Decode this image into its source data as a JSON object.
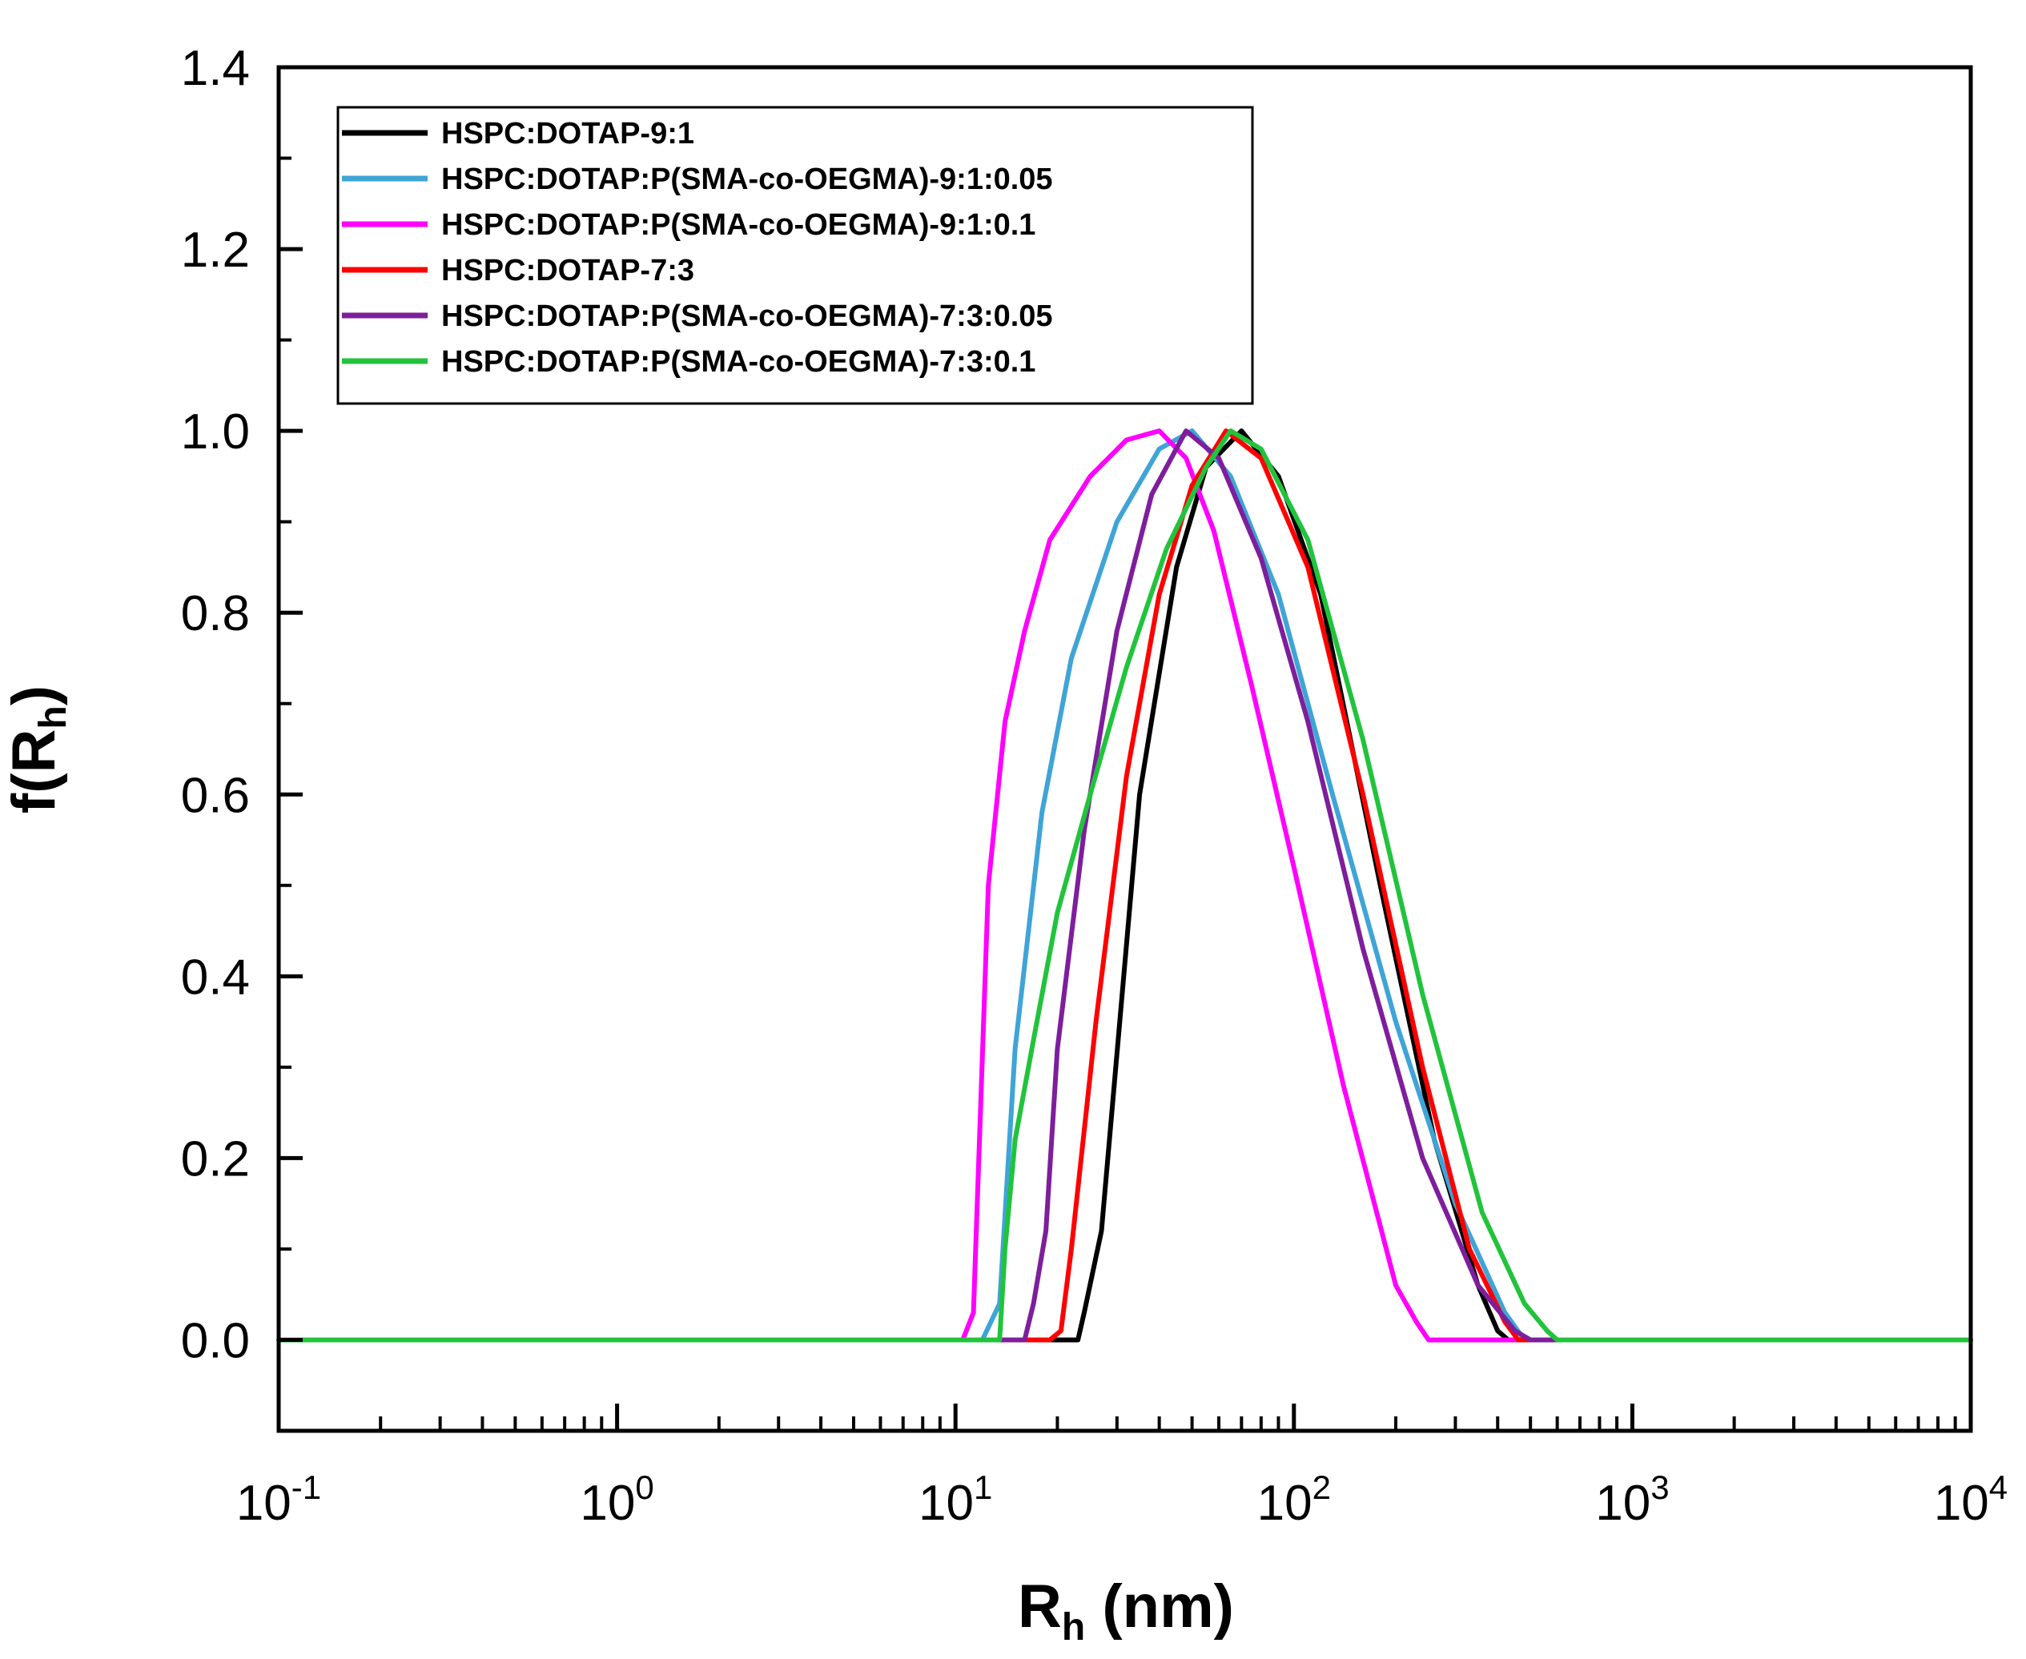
{
  "chart_data": {
    "type": "line",
    "title": "",
    "xlabel": {
      "main": "R",
      "sub": "h",
      "suffix": " (nm)"
    },
    "ylabel": {
      "prefix": "f(R",
      "sub": "h",
      "suffix": ")"
    },
    "xscale": "log",
    "xlim": [
      0.1,
      10000
    ],
    "ylim": [
      -0.1,
      1.4
    ],
    "x_ticks": [
      {
        "base": "10",
        "exp": "-1",
        "value": 0.1
      },
      {
        "base": "10",
        "exp": "0",
        "value": 1
      },
      {
        "base": "10",
        "exp": "1",
        "value": 10
      },
      {
        "base": "10",
        "exp": "2",
        "value": 100
      },
      {
        "base": "10",
        "exp": "3",
        "value": 1000
      },
      {
        "base": "10",
        "exp": "4",
        "value": 10000
      }
    ],
    "y_ticks": [
      "0.0",
      "0.2",
      "0.4",
      "0.6",
      "0.8",
      "1.0",
      "1.2",
      "1.4"
    ],
    "legend_position": "top-left",
    "grid": false,
    "series": [
      {
        "name": "HSPC:DOTAP-9:1",
        "color": "#000000",
        "points": [
          [
            0.1,
            0
          ],
          [
            23,
            0
          ],
          [
            24,
            0.03
          ],
          [
            27,
            0.12
          ],
          [
            35,
            0.6
          ],
          [
            45,
            0.85
          ],
          [
            55,
            0.96
          ],
          [
            70,
            1.0
          ],
          [
            90,
            0.95
          ],
          [
            120,
            0.82
          ],
          [
            180,
            0.5
          ],
          [
            260,
            0.22
          ],
          [
            350,
            0.06
          ],
          [
            400,
            0.01
          ],
          [
            430,
            0
          ],
          [
            10000,
            0
          ]
        ]
      },
      {
        "name": "HSPC:DOTAP:P(SMA-co-OEGMA)-9:1:0.05",
        "color": "#3fa4d6",
        "points": [
          [
            0.1,
            0
          ],
          [
            12,
            0
          ],
          [
            13.5,
            0.04
          ],
          [
            15,
            0.32
          ],
          [
            18,
            0.58
          ],
          [
            22,
            0.75
          ],
          [
            30,
            0.9
          ],
          [
            40,
            0.98
          ],
          [
            50,
            1.0
          ],
          [
            65,
            0.95
          ],
          [
            90,
            0.82
          ],
          [
            130,
            0.6
          ],
          [
            200,
            0.35
          ],
          [
            300,
            0.15
          ],
          [
            420,
            0.03
          ],
          [
            480,
            0
          ],
          [
            10000,
            0
          ]
        ]
      },
      {
        "name": "HSPC:DOTAP:P(SMA-co-OEGMA)-9:1:0.1",
        "color": "#ff00ff",
        "points": [
          [
            0.1,
            0
          ],
          [
            10.5,
            0
          ],
          [
            11.3,
            0.03
          ],
          [
            12.5,
            0.5
          ],
          [
            14,
            0.68
          ],
          [
            16,
            0.78
          ],
          [
            19,
            0.88
          ],
          [
            25,
            0.95
          ],
          [
            32,
            0.99
          ],
          [
            40,
            1.0
          ],
          [
            48,
            0.97
          ],
          [
            58,
            0.89
          ],
          [
            75,
            0.72
          ],
          [
            100,
            0.52
          ],
          [
            140,
            0.28
          ],
          [
            200,
            0.06
          ],
          [
            230,
            0.02
          ],
          [
            250,
            0
          ],
          [
            10000,
            0
          ]
        ]
      },
      {
        "name": "HSPC:DOTAP-7:3",
        "color": "#ff0000",
        "points": [
          [
            0.1,
            0
          ],
          [
            19,
            0
          ],
          [
            20.5,
            0.01
          ],
          [
            22,
            0.1
          ],
          [
            26,
            0.35
          ],
          [
            32,
            0.62
          ],
          [
            40,
            0.82
          ],
          [
            50,
            0.94
          ],
          [
            63,
            1.0
          ],
          [
            80,
            0.97
          ],
          [
            110,
            0.85
          ],
          [
            160,
            0.6
          ],
          [
            240,
            0.3
          ],
          [
            330,
            0.1
          ],
          [
            420,
            0.02
          ],
          [
            460,
            0
          ],
          [
            10000,
            0
          ]
        ]
      },
      {
        "name": "HSPC:DOTAP:P(SMA-co-OEGMA)-7:3:0.05",
        "color": "#7e1e9c",
        "points": [
          [
            0.1,
            0
          ],
          [
            16,
            0
          ],
          [
            17,
            0.04
          ],
          [
            18.5,
            0.12
          ],
          [
            20,
            0.32
          ],
          [
            24,
            0.56
          ],
          [
            30,
            0.78
          ],
          [
            38,
            0.93
          ],
          [
            48,
            1.0
          ],
          [
            60,
            0.97
          ],
          [
            80,
            0.86
          ],
          [
            110,
            0.68
          ],
          [
            160,
            0.43
          ],
          [
            240,
            0.2
          ],
          [
            350,
            0.06
          ],
          [
            450,
            0.01
          ],
          [
            500,
            0
          ],
          [
            10000,
            0
          ]
        ]
      },
      {
        "name": "HSPC:DOTAP:P(SMA-co-OEGMA)-7:3:0.1",
        "color": "#22c33c",
        "points": [
          [
            0.1,
            0
          ],
          [
            13.5,
            0
          ],
          [
            14,
            0.1
          ],
          [
            15,
            0.22
          ],
          [
            17,
            0.33
          ],
          [
            20,
            0.47
          ],
          [
            25,
            0.6
          ],
          [
            32,
            0.74
          ],
          [
            42,
            0.87
          ],
          [
            55,
            0.96
          ],
          [
            65,
            1.0
          ],
          [
            80,
            0.98
          ],
          [
            110,
            0.88
          ],
          [
            160,
            0.66
          ],
          [
            240,
            0.38
          ],
          [
            360,
            0.14
          ],
          [
            480,
            0.04
          ],
          [
            560,
            0.01
          ],
          [
            600,
            0
          ],
          [
            10000,
            0
          ]
        ]
      }
    ]
  }
}
